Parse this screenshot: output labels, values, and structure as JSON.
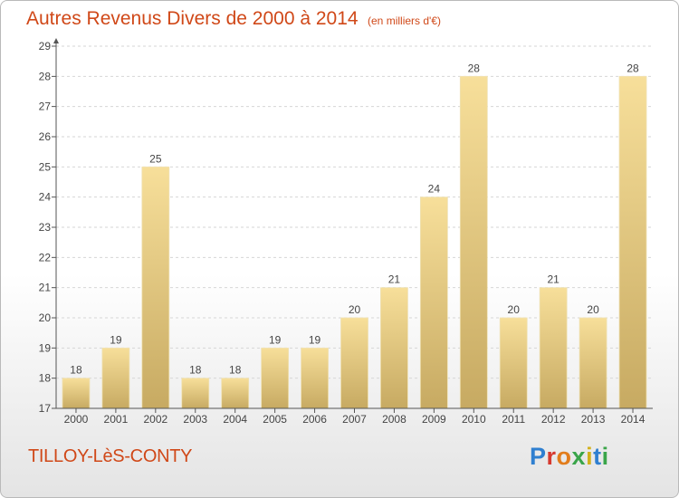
{
  "header": {
    "title": "Autres Revenus Divers de 2000 à 2014",
    "unit": "(en milliers d'€)"
  },
  "footer": {
    "commune": "TILLOY-LèS-CONTY",
    "logo_text": "Proxiti"
  },
  "colors": {
    "title": "#d04818",
    "bar_light": "#f7df9a",
    "bar_dark": "#c7aa62",
    "grid": "#dddddd"
  },
  "chart_data": {
    "type": "bar",
    "title": "Autres Revenus Divers de 2000 à 2014",
    "subtitle": "(en milliers d'€)",
    "xlabel": "",
    "ylabel": "",
    "categories": [
      "2000",
      "2001",
      "2002",
      "2003",
      "2004",
      "2005",
      "2006",
      "2007",
      "2008",
      "2009",
      "2010",
      "2011",
      "2012",
      "2013",
      "2014"
    ],
    "values": [
      18,
      19,
      25,
      18,
      18,
      19,
      19,
      20,
      21,
      24,
      28,
      20,
      21,
      20,
      28
    ],
    "ylim": [
      17,
      29
    ],
    "yticks": [
      17,
      18,
      19,
      20,
      21,
      22,
      23,
      24,
      25,
      26,
      27,
      28,
      29
    ],
    "grid": "horizontal dashed",
    "data_labels": true,
    "legend": "none"
  }
}
